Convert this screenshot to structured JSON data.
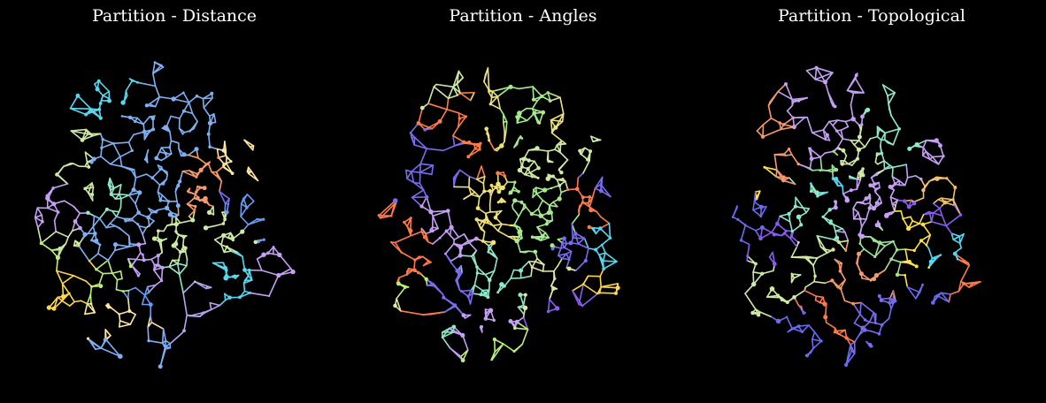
{
  "background": "#000000",
  "panels": [
    {
      "title": "Partition - Distance",
      "palette": [
        "#b8a4f0",
        "#9ee29a",
        "#7a6cf0",
        "#8a5cf2",
        "#ffd84a",
        "#57d8f0",
        "#f59a6c",
        "#c5a0f5",
        "#b9f07a",
        "#8fe9c9",
        "#6a9bf0",
        "#ffe7a0",
        "#cfeaa6",
        "#7fb0f2"
      ]
    },
    {
      "title": "Partition - Angles",
      "palette": [
        "#a6eb8f",
        "#b9f07a",
        "#57d8f0",
        "#ff7a4a",
        "#7a6cf0",
        "#c5a0f5",
        "#8fe9c9",
        "#ffd84a",
        "#cfeaa6",
        "#8a5cf2",
        "#9ee29a",
        "#f0e27a",
        "#8ab0f2",
        "#e0e6a4"
      ]
    },
    {
      "title": "Partition - Topological",
      "palette": [
        "#f59a6c",
        "#8a9ef0",
        "#9ee29a",
        "#ffe24a",
        "#7a6cf0",
        "#8fe9c9",
        "#ff7a4a",
        "#57d8f0",
        "#c5a0f5",
        "#b9f07a",
        "#f0c06a",
        "#6a6cf0",
        "#cfeaa6",
        "#8a5cf2"
      ]
    }
  ]
}
